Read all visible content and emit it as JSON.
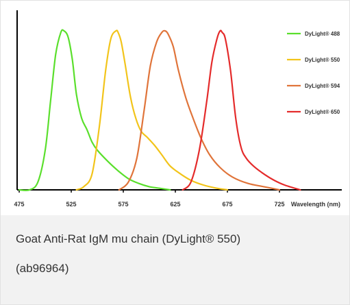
{
  "chart_data": {
    "type": "line",
    "xlabel": "Wavelength (nm)",
    "ylabel": "",
    "xlim": [
      475,
      750
    ],
    "ylim": [
      0,
      1
    ],
    "x_ticks": [
      475,
      525,
      575,
      625,
      675,
      725
    ],
    "grid": false,
    "legend_position": "top-right",
    "series": [
      {
        "name": "DyLight® 488",
        "color": "#5adf2c",
        "x": [
          475,
          485,
          493,
          500,
          505,
          510,
          515,
          518,
          522,
          526,
          530,
          535,
          540,
          545,
          550,
          560,
          570,
          580,
          590,
          600,
          610,
          620
        ],
        "y": [
          0.0,
          0.0,
          0.05,
          0.25,
          0.55,
          0.85,
          0.99,
          1.0,
          0.96,
          0.82,
          0.6,
          0.45,
          0.38,
          0.3,
          0.25,
          0.18,
          0.12,
          0.07,
          0.04,
          0.02,
          0.01,
          0.0
        ]
      },
      {
        "name": "DyLight® 550",
        "color": "#f2c41a",
        "x": [
          530,
          537,
          545,
          552,
          558,
          563,
          568,
          570,
          573,
          577,
          582,
          587,
          592,
          598,
          605,
          612,
          620,
          630,
          640,
          652,
          665,
          675
        ],
        "y": [
          0.0,
          0.02,
          0.1,
          0.4,
          0.75,
          0.95,
          1.0,
          0.99,
          0.93,
          0.78,
          0.58,
          0.45,
          0.37,
          0.33,
          0.28,
          0.22,
          0.15,
          0.1,
          0.06,
          0.03,
          0.01,
          0.0
        ]
      },
      {
        "name": "DyLight® 594",
        "color": "#e0743a",
        "x": [
          571,
          580,
          588,
          595,
          601,
          607,
          612,
          615,
          618,
          623,
          628,
          635,
          642,
          650,
          658,
          668,
          680,
          695,
          710,
          725
        ],
        "y": [
          0.0,
          0.05,
          0.2,
          0.5,
          0.78,
          0.93,
          0.99,
          1.0,
          0.98,
          0.9,
          0.75,
          0.58,
          0.45,
          0.32,
          0.22,
          0.14,
          0.08,
          0.04,
          0.02,
          0.0
        ]
      },
      {
        "name": "DyLight® 650",
        "color": "#e42b2b",
        "x": [
          632,
          640,
          648,
          655,
          660,
          665,
          668,
          670,
          673,
          678,
          683,
          688,
          693,
          700,
          710,
          720,
          730,
          745
        ],
        "y": [
          0.0,
          0.05,
          0.25,
          0.55,
          0.8,
          0.95,
          1.0,
          0.99,
          0.95,
          0.75,
          0.45,
          0.27,
          0.2,
          0.15,
          0.1,
          0.06,
          0.03,
          0.0
        ]
      }
    ]
  },
  "caption": {
    "line1": "Goat Anti-Rat IgM mu chain (DyLight® 550)",
    "line2": "(ab96964)"
  }
}
